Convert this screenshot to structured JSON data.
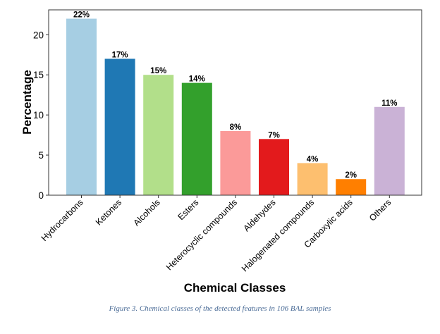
{
  "chart_data": {
    "type": "bar",
    "categories": [
      "Hydrocarbons",
      "Ketones",
      "Alcohols",
      "Esters",
      "Heterocyclic compounds",
      "Aldehydes",
      "Halogenated compounds",
      "Carboxylic acids",
      "Others"
    ],
    "values": [
      22,
      17,
      15,
      14,
      8,
      7,
      4,
      2,
      11
    ],
    "data_labels": [
      "22%",
      "17%",
      "15%",
      "14%",
      "8%",
      "7%",
      "4%",
      "2%",
      "11%"
    ],
    "colors": [
      "#a6cee3",
      "#1f78b4",
      "#b2df8a",
      "#33a02c",
      "#fb9a99",
      "#e31a1c",
      "#fdbf6f",
      "#ff7f00",
      "#cab2d6"
    ],
    "xlabel": "Chemical Classes",
    "ylabel": "Percentage",
    "ylim": [
      0,
      23.1
    ],
    "yticks": [
      0,
      5,
      10,
      15,
      20
    ],
    "grid": false,
    "legend": "none"
  },
  "caption": "Figure 3. Chemical classes of the detected features in 106 BAL samples"
}
